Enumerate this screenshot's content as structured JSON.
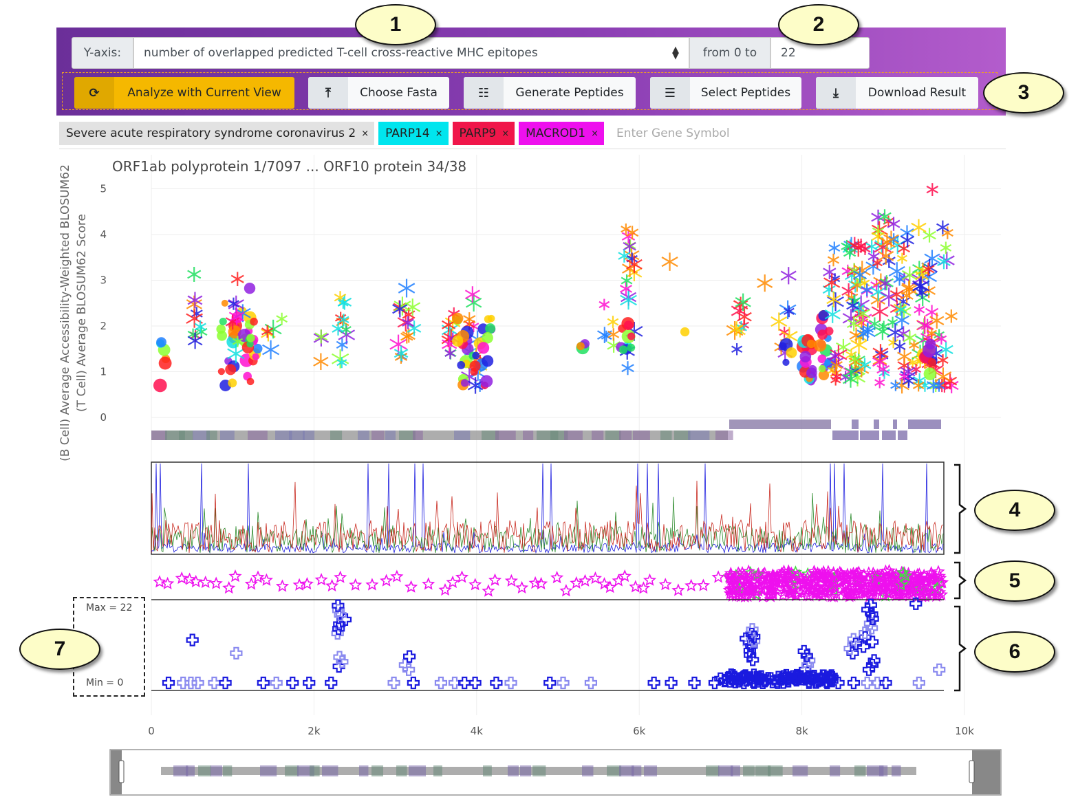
{
  "toolbar": {
    "yaxis_label": "Y-axis:",
    "yaxis_value": "number of overlapped predicted T-cell cross-reactive MHC epitopes",
    "range_label": "from 0 to",
    "range_value": "22",
    "buttons": [
      {
        "label": "Analyze with Current View",
        "icon": "refresh-icon"
      },
      {
        "label": "Choose Fasta",
        "icon": "upload-icon"
      },
      {
        "label": "Generate Peptides",
        "icon": "generate-icon"
      },
      {
        "label": "Select Peptides",
        "icon": "select-list-icon"
      },
      {
        "label": "Download Result",
        "icon": "download-icon"
      }
    ]
  },
  "genes": {
    "tags": [
      {
        "label": "Severe acute respiratory syndrome coronavirus 2",
        "color": "#e2e2e2"
      },
      {
        "label": "PARP14",
        "color": "#00e5ee"
      },
      {
        "label": "PARP9",
        "color": "#f0164a"
      },
      {
        "label": "MACROD1",
        "color": "#ee10ee"
      }
    ],
    "remove_symbol": "×",
    "input_placeholder": "Enter Gene Symbol"
  },
  "plot": {
    "title": "ORF1ab polyprotein 1/7097 ... ORF10 protein 34/38",
    "ylabel_line1": "(B Cell) Average Accessibility-Weighted BLOSUM62",
    "ylabel_line2": "(T Cell) Average BLOSUM62 Score",
    "yticks": [
      "0",
      "1",
      "2",
      "3",
      "4",
      "5"
    ],
    "xticks": [
      "0",
      "2k",
      "4k",
      "6k",
      "8k",
      "10k"
    ],
    "max_label": "Max = 22",
    "min_label": "Min = 0"
  },
  "callouts": [
    "1",
    "2",
    "3",
    "4",
    "5",
    "6",
    "7"
  ],
  "colors": {
    "accent": "#f5b800",
    "toolbar_start": "#6b2f99",
    "toolbar_end": "#b35ccc",
    "track_blue": "#1a1adf",
    "track_magenta": "#ee10ee"
  }
}
